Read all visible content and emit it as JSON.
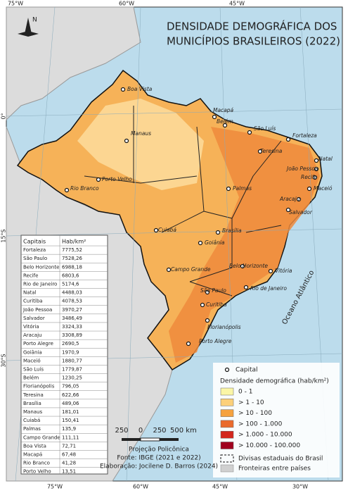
{
  "title": [
    "DENSIDADE DEMOGRÁFICA DOS",
    "MUNICÍPIOS BRASILEIROS (2022)"
  ],
  "graticule": {
    "top": [
      "75°W",
      "60°W",
      "45°W"
    ],
    "bottom": [
      "75°W",
      "60°W",
      "45°W",
      "30°W"
    ],
    "left": [
      "0°",
      "15°S",
      "30°S"
    ]
  },
  "north_arrow": "N",
  "ocean_label": "Oceano Atlântico",
  "capitals_map": [
    "Boa Vista",
    "Macapá",
    "Manaus",
    "Belém",
    "São Luís",
    "Fortaleza",
    "Teresina",
    "Natal",
    "João Pessoa",
    "Recife",
    "Maceió",
    "Aracaju",
    "Salvador",
    "Porto Velho",
    "Rio Branco",
    "Palmas",
    "Cuiabá",
    "Brasília",
    "Goiânia",
    "Campo Grande",
    "Belo Horizonte",
    "Vitória",
    "São Paulo",
    "Rio de Janeiro",
    "Curitiba",
    "Florianópolis",
    "Porto Alegre"
  ],
  "table": {
    "header": [
      "Capitais",
      "Hab/km²"
    ],
    "rows": [
      [
        "Fortaleza",
        "7775,52"
      ],
      [
        "São Paulo",
        "7528,26"
      ],
      [
        "Belo Horizonte",
        "6988,18"
      ],
      [
        "Recife",
        "6803,6"
      ],
      [
        "Rio de Janeiro",
        "5174,6"
      ],
      [
        "Natal",
        "4488,03"
      ],
      [
        "Curitiba",
        "4078,53"
      ],
      [
        "João Pessoa",
        "3970,27"
      ],
      [
        "Salvador",
        "3486,49"
      ],
      [
        "Vitória",
        "3324,33"
      ],
      [
        "Aracaju",
        "3308,89"
      ],
      [
        "Porto Alegre",
        "2690,5"
      ],
      [
        "Goiânia",
        "1970,9"
      ],
      [
        "Maceió",
        "1880,77"
      ],
      [
        "São Luís",
        "1779,87"
      ],
      [
        "Belém",
        "1230,25"
      ],
      [
        "Florianópolis",
        "796,05"
      ],
      [
        "Teresina",
        "622,66"
      ],
      [
        "Brasília",
        "489,06"
      ],
      [
        "Manaus",
        "181,01"
      ],
      [
        "Cuiabá",
        "150,41"
      ],
      [
        "Palmas",
        "135,9"
      ],
      [
        "Campo Grande",
        "111,11"
      ],
      [
        "Boa Vista",
        "72,71"
      ],
      [
        "Macapá",
        "67,48"
      ],
      [
        "Rio Branco",
        "41,28"
      ],
      [
        "Porto Velho",
        "13,51"
      ]
    ]
  },
  "legend": {
    "capital": "Capital",
    "title": "Densidade demográfica (hab/km²)",
    "classes": [
      {
        "label": "0 - 1",
        "color": "#fbf6a6"
      },
      {
        "label": "> 1 - 10",
        "color": "#fcd07a"
      },
      {
        "label": "> 10 - 100",
        "color": "#f6a23f"
      },
      {
        "label": "> 100 - 1.000",
        "color": "#ea6a2c"
      },
      {
        "label": "> 1.000 - 10.000",
        "color": "#d3261d"
      },
      {
        "label": "> 10.000 - 100.000",
        "color": "#a0001e"
      }
    ],
    "state_borders": "Divisas estaduais do Brasil",
    "country_borders": "Fronteiras entre países"
  },
  "scale_bar": [
    "250",
    "0",
    "250",
    "500 km"
  ],
  "credits": [
    "Projeção Policônica",
    "Fonte: IBGE (2021 e 2022)",
    "Elaboração: Jocilene D. Barros (2024)"
  ]
}
